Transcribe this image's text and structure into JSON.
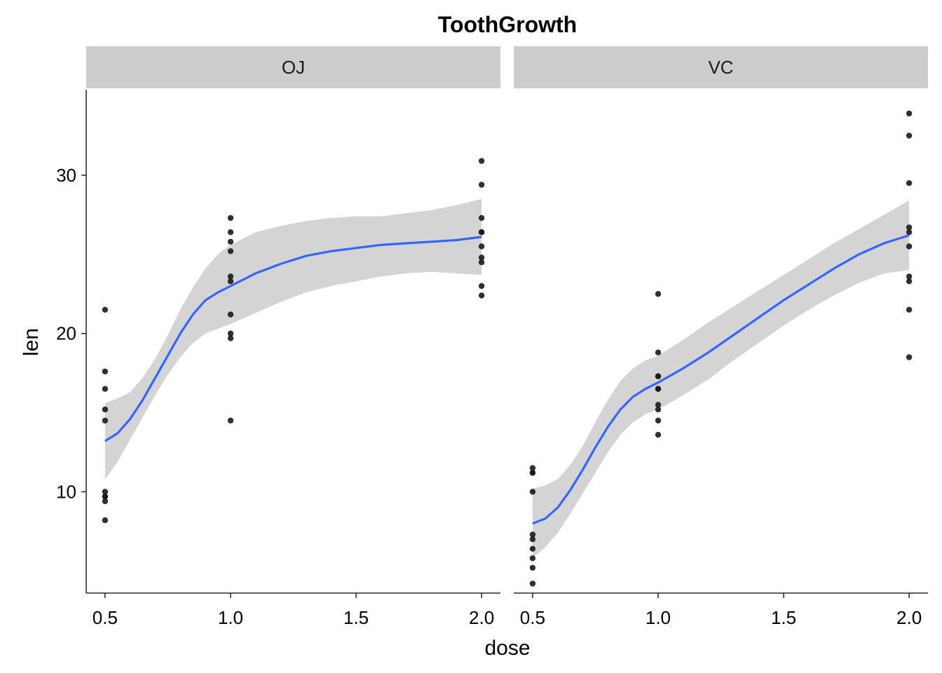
{
  "chart_data": {
    "type": "scatter",
    "title": "ToothGrowth",
    "xlabel": "dose",
    "ylabel": "len",
    "xlim": [
      0.425,
      2.075
    ],
    "ylim": [
      3.6,
      35.4
    ],
    "x_ticks": [
      0.5,
      1.0,
      1.5,
      2.0
    ],
    "x_tick_labels": [
      "0.5",
      "1.0",
      "1.5",
      "2.0"
    ],
    "y_ticks": [
      10,
      20,
      30
    ],
    "y_tick_labels": [
      "10",
      "20",
      "30"
    ],
    "grid": false,
    "legend": "none",
    "colors": {
      "points": "#1a1a1a",
      "smooth_line": "#3366ff",
      "ribbon": "#d4d4d4",
      "strip": "#cccccc",
      "axis": "#000000"
    },
    "panels": [
      {
        "strip": "OJ",
        "points": [
          {
            "x": 0.5,
            "y": 15.2
          },
          {
            "x": 0.5,
            "y": 21.5
          },
          {
            "x": 0.5,
            "y": 17.6
          },
          {
            "x": 0.5,
            "y": 9.7
          },
          {
            "x": 0.5,
            "y": 14.5
          },
          {
            "x": 0.5,
            "y": 10.0
          },
          {
            "x": 0.5,
            "y": 8.2
          },
          {
            "x": 0.5,
            "y": 9.4
          },
          {
            "x": 0.5,
            "y": 16.5
          },
          {
            "x": 0.5,
            "y": 9.7
          },
          {
            "x": 1.0,
            "y": 19.7
          },
          {
            "x": 1.0,
            "y": 23.3
          },
          {
            "x": 1.0,
            "y": 23.6
          },
          {
            "x": 1.0,
            "y": 26.4
          },
          {
            "x": 1.0,
            "y": 20.0
          },
          {
            "x": 1.0,
            "y": 25.2
          },
          {
            "x": 1.0,
            "y": 25.8
          },
          {
            "x": 1.0,
            "y": 21.2
          },
          {
            "x": 1.0,
            "y": 14.5
          },
          {
            "x": 1.0,
            "y": 27.3
          },
          {
            "x": 2.0,
            "y": 25.5
          },
          {
            "x": 2.0,
            "y": 26.4
          },
          {
            "x": 2.0,
            "y": 22.4
          },
          {
            "x": 2.0,
            "y": 24.5
          },
          {
            "x": 2.0,
            "y": 24.8
          },
          {
            "x": 2.0,
            "y": 30.9
          },
          {
            "x": 2.0,
            "y": 26.4
          },
          {
            "x": 2.0,
            "y": 27.3
          },
          {
            "x": 2.0,
            "y": 29.4
          },
          {
            "x": 2.0,
            "y": 23.0
          }
        ],
        "smooth": {
          "x": [
            0.5,
            0.55,
            0.6,
            0.65,
            0.7,
            0.75,
            0.8,
            0.85,
            0.9,
            0.95,
            1.0,
            1.1,
            1.2,
            1.3,
            1.4,
            1.5,
            1.6,
            1.7,
            1.8,
            1.9,
            2.0
          ],
          "y": [
            13.2,
            13.7,
            14.6,
            15.8,
            17.2,
            18.6,
            20.0,
            21.2,
            22.1,
            22.6,
            23.0,
            23.8,
            24.4,
            24.9,
            25.2,
            25.4,
            25.6,
            25.7,
            25.8,
            25.9,
            26.1
          ],
          "lower": [
            10.8,
            11.9,
            13.3,
            14.7,
            16.1,
            17.4,
            18.5,
            19.4,
            20.0,
            20.3,
            20.6,
            21.3,
            22.0,
            22.6,
            23.0,
            23.3,
            23.6,
            23.8,
            23.9,
            23.8,
            23.7
          ],
          "upper": [
            15.6,
            15.9,
            16.3,
            17.2,
            18.4,
            19.9,
            21.5,
            22.9,
            24.1,
            25.0,
            25.6,
            26.4,
            26.8,
            27.1,
            27.3,
            27.4,
            27.4,
            27.6,
            27.8,
            28.1,
            28.5
          ]
        }
      },
      {
        "strip": "VC",
        "points": [
          {
            "x": 0.5,
            "y": 4.2
          },
          {
            "x": 0.5,
            "y": 11.5
          },
          {
            "x": 0.5,
            "y": 7.3
          },
          {
            "x": 0.5,
            "y": 5.8
          },
          {
            "x": 0.5,
            "y": 6.4
          },
          {
            "x": 0.5,
            "y": 10.0
          },
          {
            "x": 0.5,
            "y": 11.2
          },
          {
            "x": 0.5,
            "y": 11.2
          },
          {
            "x": 0.5,
            "y": 5.2
          },
          {
            "x": 0.5,
            "y": 7.0
          },
          {
            "x": 1.0,
            "y": 16.5
          },
          {
            "x": 1.0,
            "y": 16.5
          },
          {
            "x": 1.0,
            "y": 15.2
          },
          {
            "x": 1.0,
            "y": 17.3
          },
          {
            "x": 1.0,
            "y": 22.5
          },
          {
            "x": 1.0,
            "y": 17.3
          },
          {
            "x": 1.0,
            "y": 13.6
          },
          {
            "x": 1.0,
            "y": 14.5
          },
          {
            "x": 1.0,
            "y": 18.8
          },
          {
            "x": 1.0,
            "y": 15.5
          },
          {
            "x": 2.0,
            "y": 23.6
          },
          {
            "x": 2.0,
            "y": 18.5
          },
          {
            "x": 2.0,
            "y": 33.9
          },
          {
            "x": 2.0,
            "y": 25.5
          },
          {
            "x": 2.0,
            "y": 26.4
          },
          {
            "x": 2.0,
            "y": 32.5
          },
          {
            "x": 2.0,
            "y": 26.7
          },
          {
            "x": 2.0,
            "y": 21.5
          },
          {
            "x": 2.0,
            "y": 23.3
          },
          {
            "x": 2.0,
            "y": 29.5
          }
        ],
        "smooth": {
          "x": [
            0.5,
            0.55,
            0.6,
            0.65,
            0.7,
            0.75,
            0.8,
            0.85,
            0.9,
            0.95,
            1.0,
            1.1,
            1.2,
            1.3,
            1.4,
            1.5,
            1.6,
            1.7,
            1.8,
            1.9,
            2.0
          ],
          "y": [
            8.0,
            8.3,
            9.0,
            10.1,
            11.4,
            12.8,
            14.1,
            15.2,
            16.0,
            16.5,
            16.9,
            17.8,
            18.8,
            19.9,
            21.0,
            22.1,
            23.1,
            24.1,
            25.0,
            25.7,
            26.2
          ],
          "lower": [
            5.8,
            6.5,
            7.4,
            8.6,
            9.9,
            11.2,
            12.5,
            13.6,
            14.4,
            14.9,
            15.2,
            16.1,
            17.1,
            18.3,
            19.4,
            20.5,
            21.5,
            22.4,
            23.2,
            23.8,
            24.0
          ],
          "upper": [
            10.2,
            10.4,
            10.8,
            11.7,
            12.9,
            14.4,
            15.8,
            17.0,
            17.8,
            18.3,
            18.6,
            19.6,
            20.7,
            21.7,
            22.7,
            23.7,
            24.7,
            25.7,
            26.6,
            27.5,
            28.4
          ]
        }
      }
    ]
  }
}
